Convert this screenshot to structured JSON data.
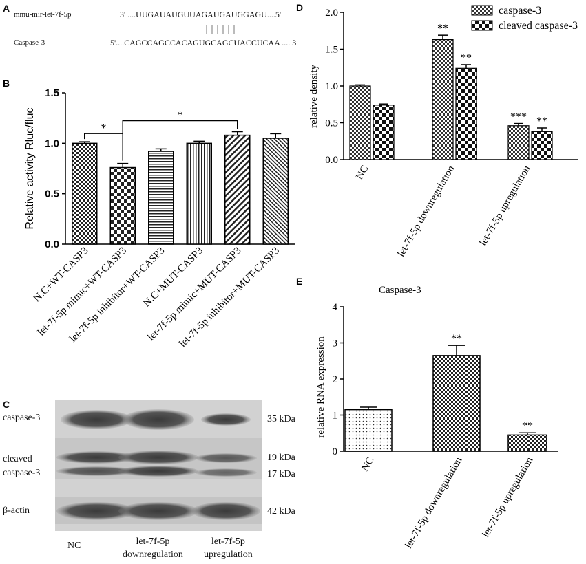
{
  "panelA": {
    "label": "A",
    "mirna_name": "mmu-mir-let-7f-5p",
    "mirna_seq": "3' ....UUGAUAUGUUAGAUGAUGGAGU....5'",
    "target_name": "Caspase-3",
    "target_seq": "5'....CAGCCAGCCACAGUGCAGCUACCUCAA .... 3"
  },
  "panelC": {
    "label": "C",
    "rows": [
      "caspase-3",
      "cleaved",
      "caspase-3",
      "β-actin"
    ],
    "kda": [
      "35 kDa",
      "19 kDa",
      "17 kDa",
      "42 kDa"
    ],
    "lanes": [
      "NC",
      "let-7f-5p\ndownregulation",
      "let-7f-5p\nupregulation"
    ]
  },
  "chart_data": [
    {
      "panel": "B",
      "type": "bar",
      "ylabel": "Relative activity Rluc/fluc",
      "ylim": [
        0,
        1.5
      ],
      "yticks": [
        "0.0",
        "0.5",
        "1.0",
        "1.5"
      ],
      "categories": [
        "N.C+WT-CASP3",
        "let-7f-5p mimic+WT-CASP3",
        "let-7f-5p inhibitor+WT-CASP3",
        "N.C+MUT-CASP3",
        "let-7f-5p mimic+MUT-CASP3",
        "let-7f-5p inhibitor+MUT-CASP3"
      ],
      "values": [
        1.0,
        0.76,
        0.92,
        1.0,
        1.08,
        1.05
      ],
      "errors": [
        0.015,
        0.04,
        0.025,
        0.02,
        0.035,
        0.045
      ],
      "patterns": [
        "checker",
        "checker-large",
        "hstripe",
        "vstripe",
        "diag",
        "diag-dense"
      ],
      "brackets": [
        {
          "from": 0,
          "to": 1,
          "label": "*"
        },
        {
          "from": 1,
          "to": 4,
          "label": "*"
        }
      ]
    },
    {
      "panel": "D",
      "type": "bar",
      "ylabel": "relative density",
      "ylim": [
        0,
        2.0
      ],
      "yticks": [
        "0.0",
        "0.5",
        "1.0",
        "1.5",
        "2.0"
      ],
      "categories": [
        "NC",
        "let-7f-5p downregulation",
        "let-7f-5p upregulation"
      ],
      "series": [
        {
          "name": "caspase-3",
          "values": [
            1.0,
            1.63,
            0.46
          ],
          "errors": [
            0.015,
            0.06,
            0.03
          ],
          "labels": [
            "",
            "**",
            "***"
          ]
        },
        {
          "name": "cleaved caspase-3",
          "values": [
            0.74,
            1.24,
            0.38
          ],
          "errors": [
            0.015,
            0.05,
            0.05
          ],
          "labels": [
            "",
            "**",
            "**"
          ]
        }
      ],
      "legend": "top-right"
    },
    {
      "panel": "E",
      "type": "bar",
      "title": "Caspase-3",
      "ylabel": "relative RNA expression",
      "ylim": [
        0,
        4
      ],
      "yticks": [
        "0",
        "1",
        "2",
        "3",
        "4"
      ],
      "categories": [
        "NC",
        "let-7f-5p downregulation",
        "let-7f-5p upregulation"
      ],
      "values": [
        1.15,
        2.65,
        0.45
      ],
      "errors": [
        0.07,
        0.28,
        0.06
      ],
      "labels": [
        "",
        "**",
        "**"
      ],
      "patterns": [
        "dots",
        "checker",
        "checker"
      ]
    }
  ]
}
